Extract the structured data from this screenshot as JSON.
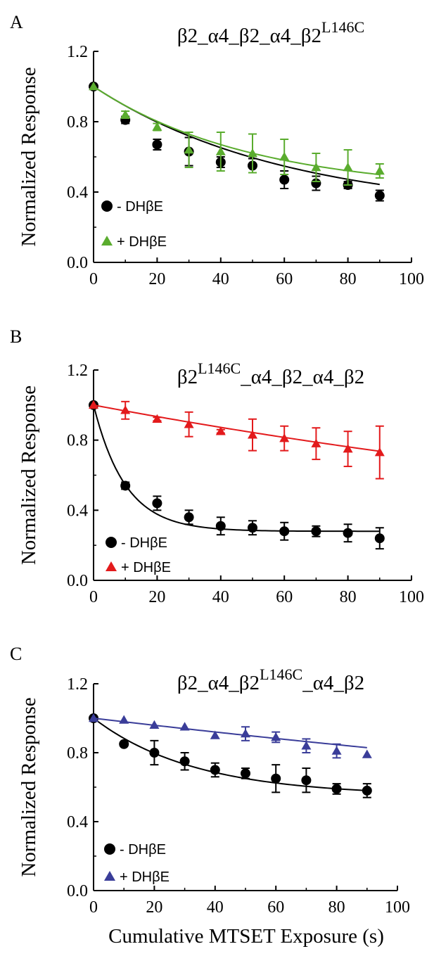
{
  "figure": {
    "xlabel": "Cumulative MTSET Exposure (s)"
  },
  "chart_data": [
    {
      "type": "scatter",
      "panel_label": "A",
      "title": {
        "base": "β2_α4_β2_α4_β2",
        "sup": "L146C",
        "suffix": ""
      },
      "ylabel": "Normalized Response",
      "xlim": [
        0,
        100
      ],
      "ylim": [
        0,
        1.2
      ],
      "xticks": [
        0,
        20,
        40,
        60,
        80,
        100
      ],
      "yticks": [
        0.0,
        0.4,
        0.8,
        1.2
      ],
      "ytick_labels": [
        "0.0",
        "0.4",
        "0.8",
        "1.2"
      ],
      "series": [
        {
          "name": "- DHβE",
          "marker": "circle",
          "color": "#000000",
          "x": [
            0,
            10,
            20,
            30,
            40,
            50,
            60,
            70,
            80,
            90
          ],
          "y": [
            1.0,
            0.81,
            0.67,
            0.63,
            0.57,
            0.55,
            0.47,
            0.45,
            0.44,
            0.38
          ],
          "err": [
            0.0,
            0.02,
            0.03,
            0.08,
            0.03,
            0.04,
            0.05,
            0.04,
            0.02,
            0.03
          ],
          "fit": {
            "plateau": 0.28,
            "k": 0.0165
          }
        },
        {
          "name": "+ DHβE",
          "marker": "triangle",
          "color": "#5aac2e",
          "x": [
            0,
            10,
            20,
            30,
            40,
            50,
            60,
            70,
            80,
            90
          ],
          "y": [
            1.0,
            0.84,
            0.77,
            0.64,
            0.63,
            0.62,
            0.6,
            0.54,
            0.54,
            0.52
          ],
          "err": [
            0.0,
            0.02,
            0.02,
            0.1,
            0.11,
            0.11,
            0.1,
            0.08,
            0.1,
            0.04
          ],
          "fit": {
            "plateau": 0.4,
            "k": 0.02
          }
        }
      ]
    },
    {
      "type": "scatter",
      "panel_label": "B",
      "title": {
        "base": "β2",
        "sup": "L146C",
        "suffix": "_α4_β2_α4_β2"
      },
      "ylabel": "Normalized Response",
      "xlim": [
        0,
        100
      ],
      "ylim": [
        0,
        1.2
      ],
      "xticks": [
        0,
        20,
        40,
        60,
        80,
        100
      ],
      "yticks": [
        0.0,
        0.4,
        0.8,
        1.2
      ],
      "ytick_labels": [
        "0.0",
        "0.4",
        "0.8",
        "1.2"
      ],
      "series": [
        {
          "name": "- DHβE",
          "marker": "circle",
          "color": "#000000",
          "x": [
            0,
            10,
            20,
            30,
            40,
            50,
            60,
            70,
            80,
            90
          ],
          "y": [
            1.0,
            0.54,
            0.44,
            0.36,
            0.31,
            0.3,
            0.28,
            0.28,
            0.27,
            0.24
          ],
          "err": [
            0.0,
            0.02,
            0.04,
            0.04,
            0.05,
            0.04,
            0.05,
            0.03,
            0.05,
            0.06
          ],
          "fit": {
            "plateau": 0.28,
            "k": 0.1
          }
        },
        {
          "name": "+ DHβE",
          "marker": "triangle",
          "color": "#e31a1c",
          "x": [
            0,
            10,
            20,
            30,
            40,
            50,
            60,
            70,
            80,
            90
          ],
          "y": [
            1.0,
            0.97,
            0.92,
            0.89,
            0.85,
            0.83,
            0.81,
            0.78,
            0.75,
            0.73
          ],
          "err": [
            0.0,
            0.05,
            0.01,
            0.07,
            0.01,
            0.09,
            0.07,
            0.09,
            0.1,
            0.15
          ],
          "fit": {
            "plateau": 0.0,
            "k": 0.0034
          }
        }
      ]
    },
    {
      "type": "scatter",
      "panel_label": "C",
      "title": {
        "base": "β2_α4_β2",
        "sup": "L146C",
        "suffix": "_α4_β2"
      },
      "ylabel": "Normalized Response",
      "xlim": [
        0,
        100
      ],
      "ylim": [
        0,
        1.2
      ],
      "xticks": [
        0,
        20,
        40,
        60,
        80,
        100
      ],
      "yticks": [
        0.0,
        0.4,
        0.8,
        1.2
      ],
      "ytick_labels": [
        "0.0",
        "0.4",
        "0.8",
        "1.2"
      ],
      "series": [
        {
          "name": "- DHβE",
          "marker": "circle",
          "color": "#000000",
          "x": [
            0,
            10,
            20,
            30,
            40,
            50,
            60,
            70,
            80,
            90
          ],
          "y": [
            1.0,
            0.85,
            0.8,
            0.75,
            0.7,
            0.68,
            0.65,
            0.64,
            0.59,
            0.58
          ],
          "err": [
            0.0,
            0.01,
            0.07,
            0.05,
            0.04,
            0.03,
            0.08,
            0.07,
            0.03,
            0.04
          ],
          "fit": {
            "plateau": 0.55,
            "k": 0.03
          }
        },
        {
          "name": "+ DHβE",
          "marker": "triangle",
          "color": "#3a3d99",
          "x": [
            0,
            10,
            20,
            30,
            40,
            50,
            60,
            70,
            80,
            90
          ],
          "y": [
            1.0,
            0.99,
            0.96,
            0.95,
            0.9,
            0.91,
            0.89,
            0.84,
            0.81,
            0.79
          ],
          "err": [
            0.0,
            0.0,
            0.0,
            0.0,
            0.0,
            0.04,
            0.03,
            0.04,
            0.04,
            0.0
          ],
          "fit": {
            "plateau": 0.0,
            "k": 0.00208
          }
        }
      ]
    }
  ]
}
